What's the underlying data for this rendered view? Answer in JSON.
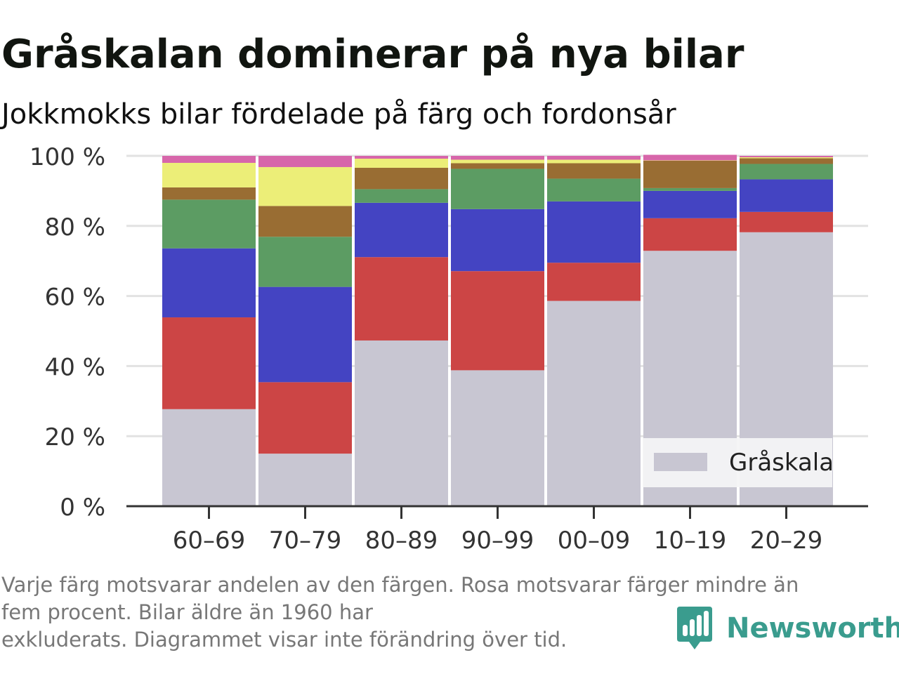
{
  "title": "Gråskalan dominerar på nya bilar",
  "subtitle": "Jokkmokks bilar fördelade på färg och fordonsår",
  "footnote": {
    "line1": "Varje färg motsvarar andelen av den färgen. Rosa motsvarar färger mindre än",
    "line2": "fem procent. Bilar äldre än 1960 har",
    "line3": "exkluderats. Diagrammet visar inte förändring över tid."
  },
  "brand": {
    "name": "Newsworthy",
    "color": "#3a9c8e"
  },
  "chart_data": {
    "type": "bar",
    "stacked": true,
    "categories": [
      "60–69",
      "70–79",
      "80–89",
      "90–99",
      "00–09",
      "10–19",
      "20–29"
    ],
    "y_ticks": [
      "0 %",
      "20 %",
      "40 %",
      "60 %",
      "80 %",
      "100 %"
    ],
    "ylim": [
      0,
      100
    ],
    "grid": true,
    "legend": {
      "position": "bottom-right",
      "entries": [
        "Gråskala"
      ]
    },
    "series": [
      {
        "name": "Gråskala",
        "color": "#c8c6d2",
        "values": [
          27.7,
          15.0,
          47.3,
          38.8,
          58.6,
          72.9,
          78.2
        ]
      },
      {
        "color": "#cc4545",
        "values": [
          26.2,
          20.4,
          23.8,
          28.3,
          10.9,
          9.3,
          5.8
        ]
      },
      {
        "color": "#4444c2",
        "values": [
          19.7,
          27.2,
          15.5,
          17.7,
          17.5,
          7.8,
          9.3
        ]
      },
      {
        "color": "#5c9c63",
        "values": [
          13.9,
          14.3,
          3.9,
          11.5,
          6.5,
          0.8,
          4.4
        ]
      },
      {
        "color": "#996d33",
        "values": [
          3.5,
          8.8,
          6.1,
          1.6,
          4.4,
          7.8,
          1.6
        ]
      },
      {
        "color": "#ecee78",
        "values": [
          7.0,
          11.1,
          2.6,
          1.0,
          1.0,
          0.1,
          0.3
        ]
      },
      {
        "color": "#d766aa",
        "values": [
          2.0,
          3.2,
          0.8,
          1.1,
          1.1,
          1.6,
          0.4
        ]
      }
    ]
  }
}
